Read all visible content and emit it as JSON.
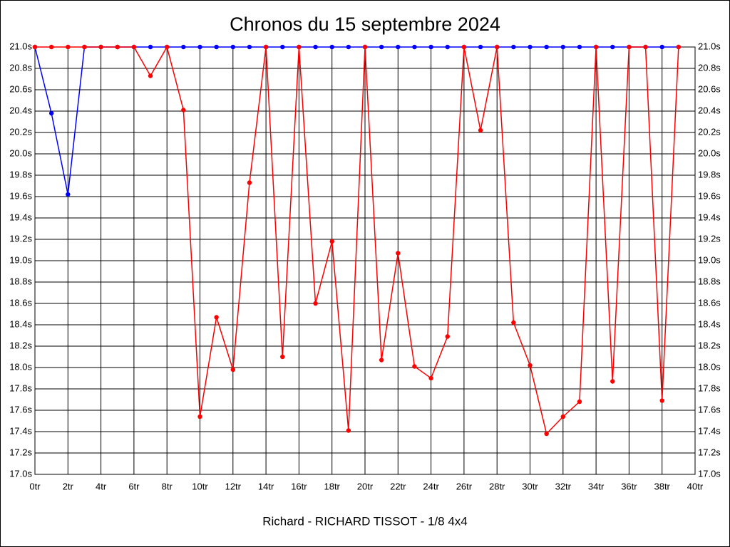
{
  "chart_data": {
    "type": "line",
    "title": "Chronos du 15 septembre 2024",
    "x_label": "Richard - RICHARD TISSOT - 1/8 4x4",
    "x": [
      0,
      1,
      2,
      3,
      4,
      5,
      6,
      7,
      8,
      9,
      10,
      11,
      12,
      13,
      14,
      15,
      16,
      17,
      18,
      19,
      20,
      21,
      22,
      23,
      24,
      25,
      26,
      27,
      28,
      29,
      30,
      31,
      32,
      33,
      34,
      35,
      36,
      37,
      38,
      39
    ],
    "series": [
      {
        "color": "#0000ff",
        "values": [
          21.0,
          20.38,
          19.62,
          21.0,
          21.0,
          21.0,
          21.0,
          21.0,
          21.0,
          21.0,
          21.0,
          21.0,
          21.0,
          21.0,
          21.0,
          21.0,
          21.0,
          21.0,
          21.0,
          21.0,
          21.0,
          21.0,
          21.0,
          21.0,
          21.0,
          21.0,
          21.0,
          21.0,
          21.0,
          21.0,
          21.0,
          21.0,
          21.0,
          21.0,
          21.0,
          21.0,
          21.0,
          21.0,
          21.0,
          21.0
        ]
      },
      {
        "color": "#ff0000",
        "values": [
          21.0,
          21.0,
          21.0,
          21.0,
          21.0,
          21.0,
          21.0,
          20.73,
          21.0,
          20.41,
          17.54,
          18.47,
          17.98,
          19.73,
          21.0,
          18.1,
          21.0,
          18.6,
          19.18,
          17.41,
          21.0,
          18.07,
          19.07,
          18.01,
          17.9,
          18.29,
          21.0,
          20.22,
          21.0,
          18.42,
          18.02,
          17.38,
          17.54,
          17.68,
          21.0,
          17.87,
          21.0,
          21.0,
          17.69,
          21.0
        ]
      }
    ],
    "xlim": [
      0,
      40
    ],
    "xticks": [
      {
        "value": 0,
        "label": "0tr"
      },
      {
        "value": 2,
        "label": "2tr"
      },
      {
        "value": 4,
        "label": "4tr"
      },
      {
        "value": 6,
        "label": "6tr"
      },
      {
        "value": 8,
        "label": "8tr"
      },
      {
        "value": 10,
        "label": "10tr"
      },
      {
        "value": 12,
        "label": "12tr"
      },
      {
        "value": 14,
        "label": "14tr"
      },
      {
        "value": 16,
        "label": "16tr"
      },
      {
        "value": 18,
        "label": "18tr"
      },
      {
        "value": 20,
        "label": "20tr"
      },
      {
        "value": 22,
        "label": "22tr"
      },
      {
        "value": 24,
        "label": "24tr"
      },
      {
        "value": 26,
        "label": "26tr"
      },
      {
        "value": 28,
        "label": "28tr"
      },
      {
        "value": 30,
        "label": "30tr"
      },
      {
        "value": 32,
        "label": "32tr"
      },
      {
        "value": 34,
        "label": "34tr"
      },
      {
        "value": 36,
        "label": "36tr"
      },
      {
        "value": 38,
        "label": "38tr"
      },
      {
        "value": 40,
        "label": "40tr"
      }
    ],
    "ylim": [
      17.0,
      21.0
    ],
    "yticks": [
      {
        "value": 17.0,
        "label": "17.0s"
      },
      {
        "value": 17.2,
        "label": "17.2s"
      },
      {
        "value": 17.4,
        "label": "17.4s"
      },
      {
        "value": 17.6,
        "label": "17.6s"
      },
      {
        "value": 17.8,
        "label": "17.8s"
      },
      {
        "value": 18.0,
        "label": "18.0s"
      },
      {
        "value": 18.2,
        "label": "18.2s"
      },
      {
        "value": 18.4,
        "label": "18.4s"
      },
      {
        "value": 18.6,
        "label": "18.6s"
      },
      {
        "value": 18.8,
        "label": "18.8s"
      },
      {
        "value": 19.0,
        "label": "19.0s"
      },
      {
        "value": 19.2,
        "label": "19.2s"
      },
      {
        "value": 19.4,
        "label": "19.4s"
      },
      {
        "value": 19.6,
        "label": "19.6s"
      },
      {
        "value": 19.8,
        "label": "19.8s"
      },
      {
        "value": 20.0,
        "label": "20.0s"
      },
      {
        "value": 20.2,
        "label": "20.2s"
      },
      {
        "value": 20.4,
        "label": "20.4s"
      },
      {
        "value": 20.6,
        "label": "20.6s"
      },
      {
        "value": 20.8,
        "label": "20.8s"
      },
      {
        "value": 21.0,
        "label": "21.0s"
      }
    ],
    "grid": true
  }
}
